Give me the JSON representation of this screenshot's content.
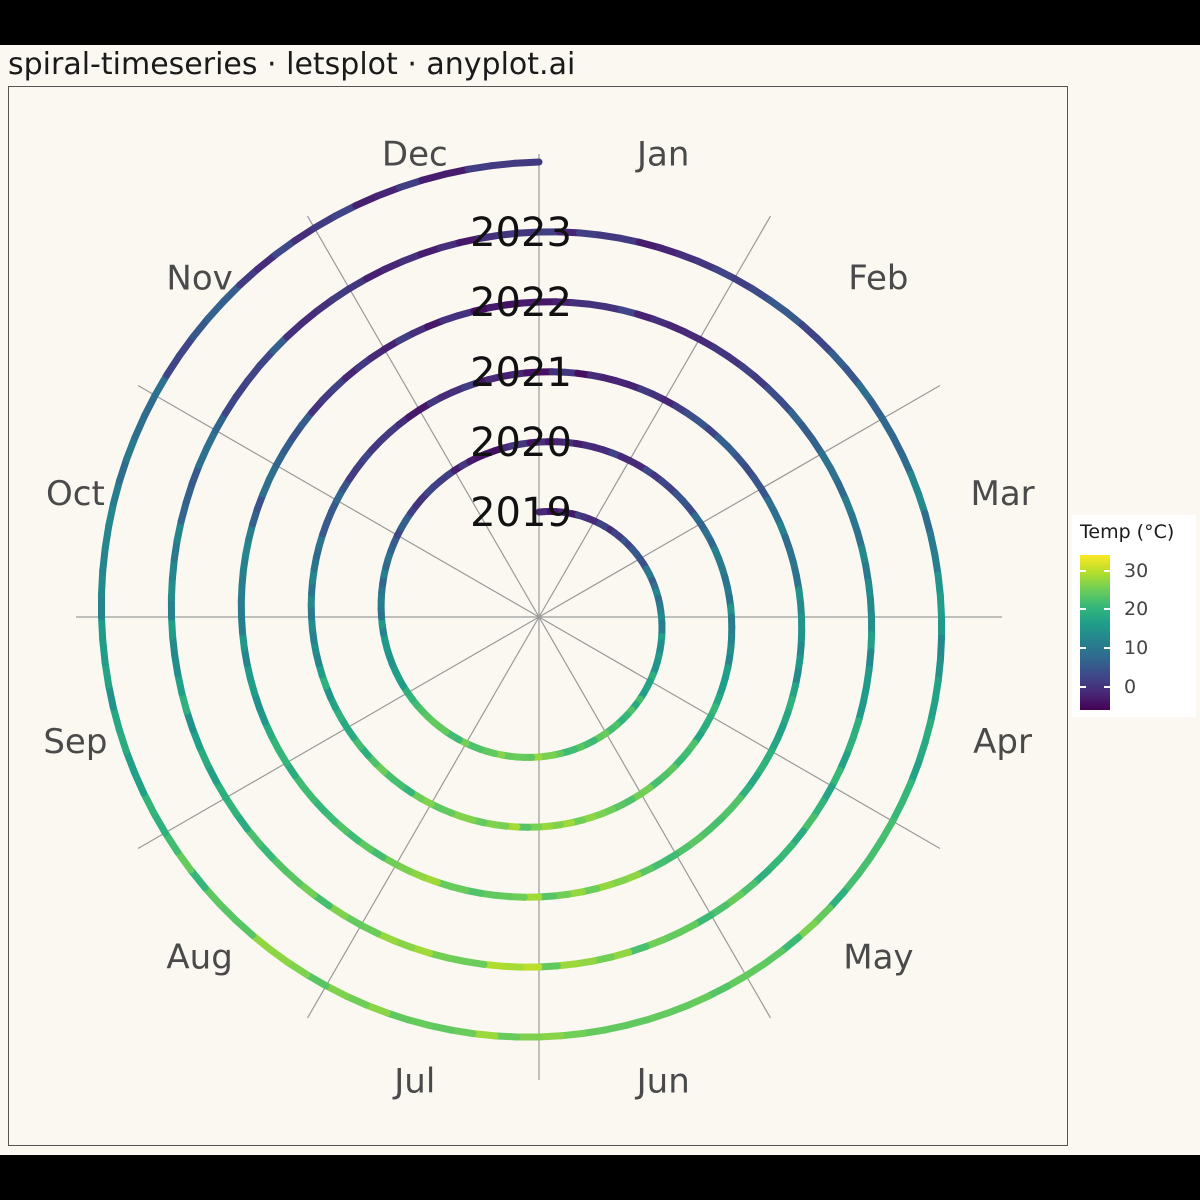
{
  "title": "spiral-timeseries · letsplot · anyplot.ai",
  "chart_data": {
    "type": "line",
    "coordinate_system": "polar-spiral",
    "months": [
      "Jan",
      "Feb",
      "Mar",
      "Apr",
      "May",
      "Jun",
      "Jul",
      "Aug",
      "Sep",
      "Oct",
      "Nov",
      "Dec"
    ],
    "years": [
      "2019",
      "2020",
      "2021",
      "2022",
      "2023"
    ],
    "series": [
      {
        "year": "2019",
        "monthly_temp": [
          -2,
          0,
          6,
          12,
          18,
          23,
          25,
          24,
          19,
          12,
          5,
          -1
        ]
      },
      {
        "year": "2020",
        "monthly_temp": [
          -1,
          1,
          7,
          13,
          19,
          23,
          26,
          24,
          20,
          12,
          5,
          -1
        ]
      },
      {
        "year": "2021",
        "monthly_temp": [
          -2,
          0,
          7,
          13,
          19,
          24,
          26,
          25,
          20,
          13,
          5,
          -1
        ]
      },
      {
        "year": "2022",
        "monthly_temp": [
          -1,
          1,
          7,
          14,
          20,
          24,
          27,
          25,
          20,
          13,
          6,
          0
        ]
      },
      {
        "year": "2023",
        "monthly_temp": [
          -1,
          1,
          8,
          14,
          20,
          25,
          27,
          26,
          21,
          13,
          6,
          0
        ]
      }
    ],
    "color_scale": {
      "name": "viridis",
      "stops": [
        "#440154",
        "#482878",
        "#3e4989",
        "#31688e",
        "#26828e",
        "#1f9e89",
        "#35b779",
        "#6ece58",
        "#b5de2b",
        "#fde725"
      ],
      "domain": [
        -6,
        34
      ]
    },
    "legend": {
      "title": "Temp (°C)",
      "ticks": [
        30,
        20,
        10,
        0
      ],
      "position": "right"
    }
  }
}
